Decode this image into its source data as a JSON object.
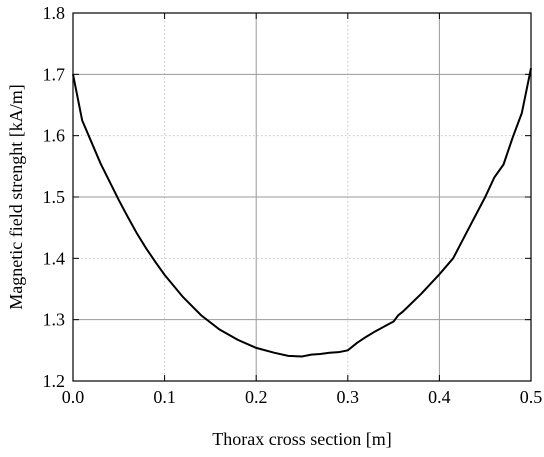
{
  "chart_data": {
    "type": "line",
    "title": "",
    "xlabel": "Thorax cross section [m]",
    "ylabel": "Magnetic field strenght [kA/m]",
    "xlim": [
      0.0,
      0.5
    ],
    "ylim": [
      1.2,
      1.8
    ],
    "xticks": [
      "0.0",
      "0.1",
      "0.2",
      "0.3",
      "0.4",
      "0.5"
    ],
    "yticks": [
      "1.2",
      "1.3",
      "1.4",
      "1.5",
      "1.6",
      "1.7",
      "1.8"
    ],
    "grid": true,
    "line_color": "#000000",
    "series": [
      {
        "x": [
          0.0,
          0.01,
          0.02,
          0.03,
          0.04,
          0.05,
          0.06,
          0.07,
          0.08,
          0.09,
          0.1,
          0.12,
          0.14,
          0.16,
          0.18,
          0.2,
          0.22,
          0.235,
          0.25,
          0.26,
          0.27,
          0.28,
          0.29,
          0.3,
          0.31,
          0.32,
          0.33,
          0.34,
          0.35,
          0.355,
          0.36,
          0.38,
          0.4,
          0.415,
          0.43,
          0.45,
          0.46,
          0.47,
          0.48,
          0.49,
          0.5
        ],
        "y": [
          1.7,
          1.625,
          1.59,
          1.555,
          1.525,
          1.495,
          1.467,
          1.44,
          1.416,
          1.394,
          1.373,
          1.337,
          1.307,
          1.284,
          1.267,
          1.254,
          1.246,
          1.241,
          1.24,
          1.243,
          1.244,
          1.246,
          1.247,
          1.25,
          1.262,
          1.272,
          1.281,
          1.289,
          1.297,
          1.307,
          1.313,
          1.342,
          1.374,
          1.4,
          1.443,
          1.5,
          1.532,
          1.553,
          1.597,
          1.637,
          1.71
        ]
      }
    ]
  }
}
